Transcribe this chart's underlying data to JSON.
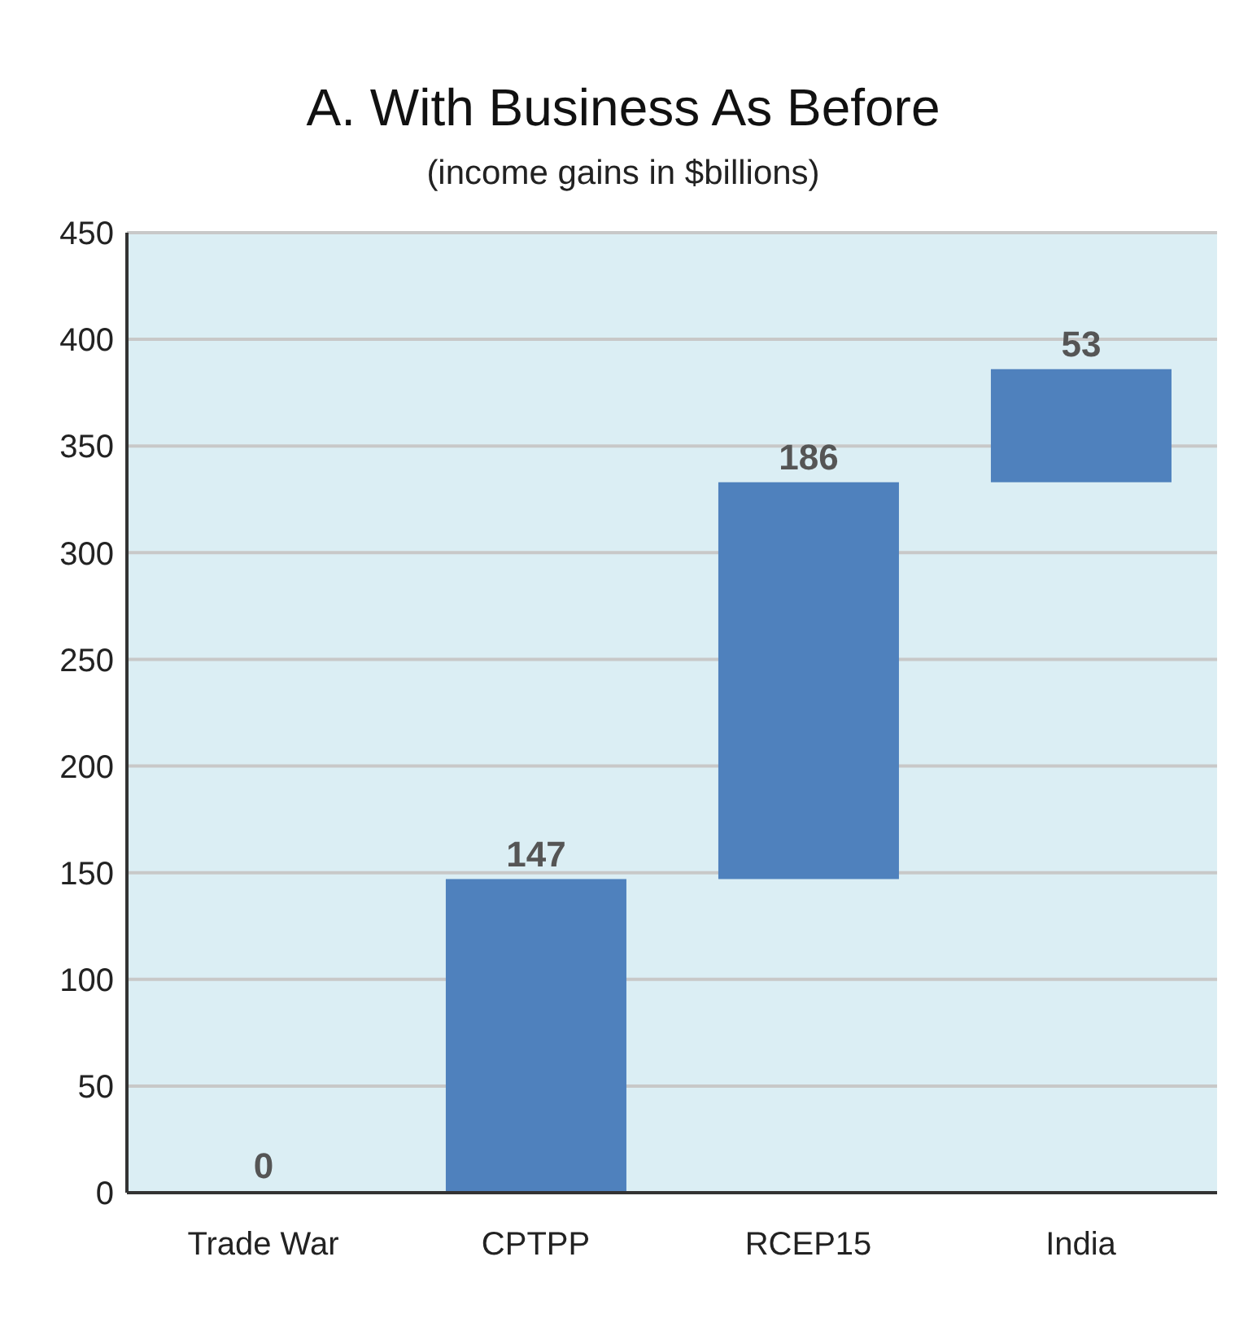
{
  "chart_data": {
    "type": "bar",
    "title": "A. With Business As Before",
    "subtitle": "(income gains in $billions)",
    "categories": [
      "Trade War",
      "CPTPP",
      "RCEP15",
      "India"
    ],
    "values": [
      0,
      147,
      186,
      53
    ],
    "base": [
      0,
      0,
      147,
      333
    ],
    "color": "#4f81bd",
    "ylim": [
      0,
      450
    ],
    "yticks": [
      0,
      50,
      100,
      150,
      200,
      250,
      300,
      350,
      400,
      450
    ],
    "grid": "y",
    "data_labels": true
  }
}
